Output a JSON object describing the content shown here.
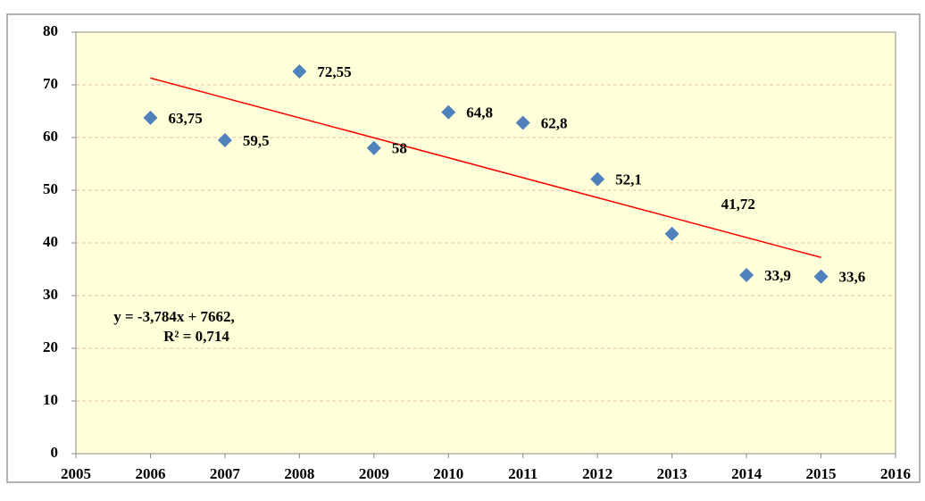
{
  "chart_data": {
    "type": "scatter",
    "series": [
      {
        "color": "#4f81bd",
        "x": [
          2006,
          2007,
          2008,
          2009,
          2010,
          2011,
          2012,
          2013,
          2014,
          2015
        ],
        "values": [
          63.75,
          59.5,
          72.55,
          58,
          64.8,
          62.8,
          52.1,
          41.72,
          33.9,
          33.6
        ],
        "value_labels": [
          "63,75",
          "59,5",
          "72,55",
          "58",
          "64,8",
          "62,8",
          "52,1",
          "41,72",
          "33,9",
          "33,6"
        ]
      }
    ],
    "trendline": {
      "slope": -3.784,
      "intercept": 7662,
      "color": "#ff0000"
    },
    "annotations": [
      "y = -3,784x + 7662,",
      "R² = 0,714"
    ],
    "xlim": [
      2005,
      2016
    ],
    "xticks": [
      2005,
      2006,
      2007,
      2008,
      2009,
      2010,
      2011,
      2012,
      2013,
      2014,
      2015,
      2016
    ],
    "ylim": [
      0,
      80
    ],
    "yticks": [
      0,
      10,
      20,
      30,
      40,
      50,
      60,
      70,
      80
    ],
    "grid": true,
    "background": "#ffffd9"
  }
}
